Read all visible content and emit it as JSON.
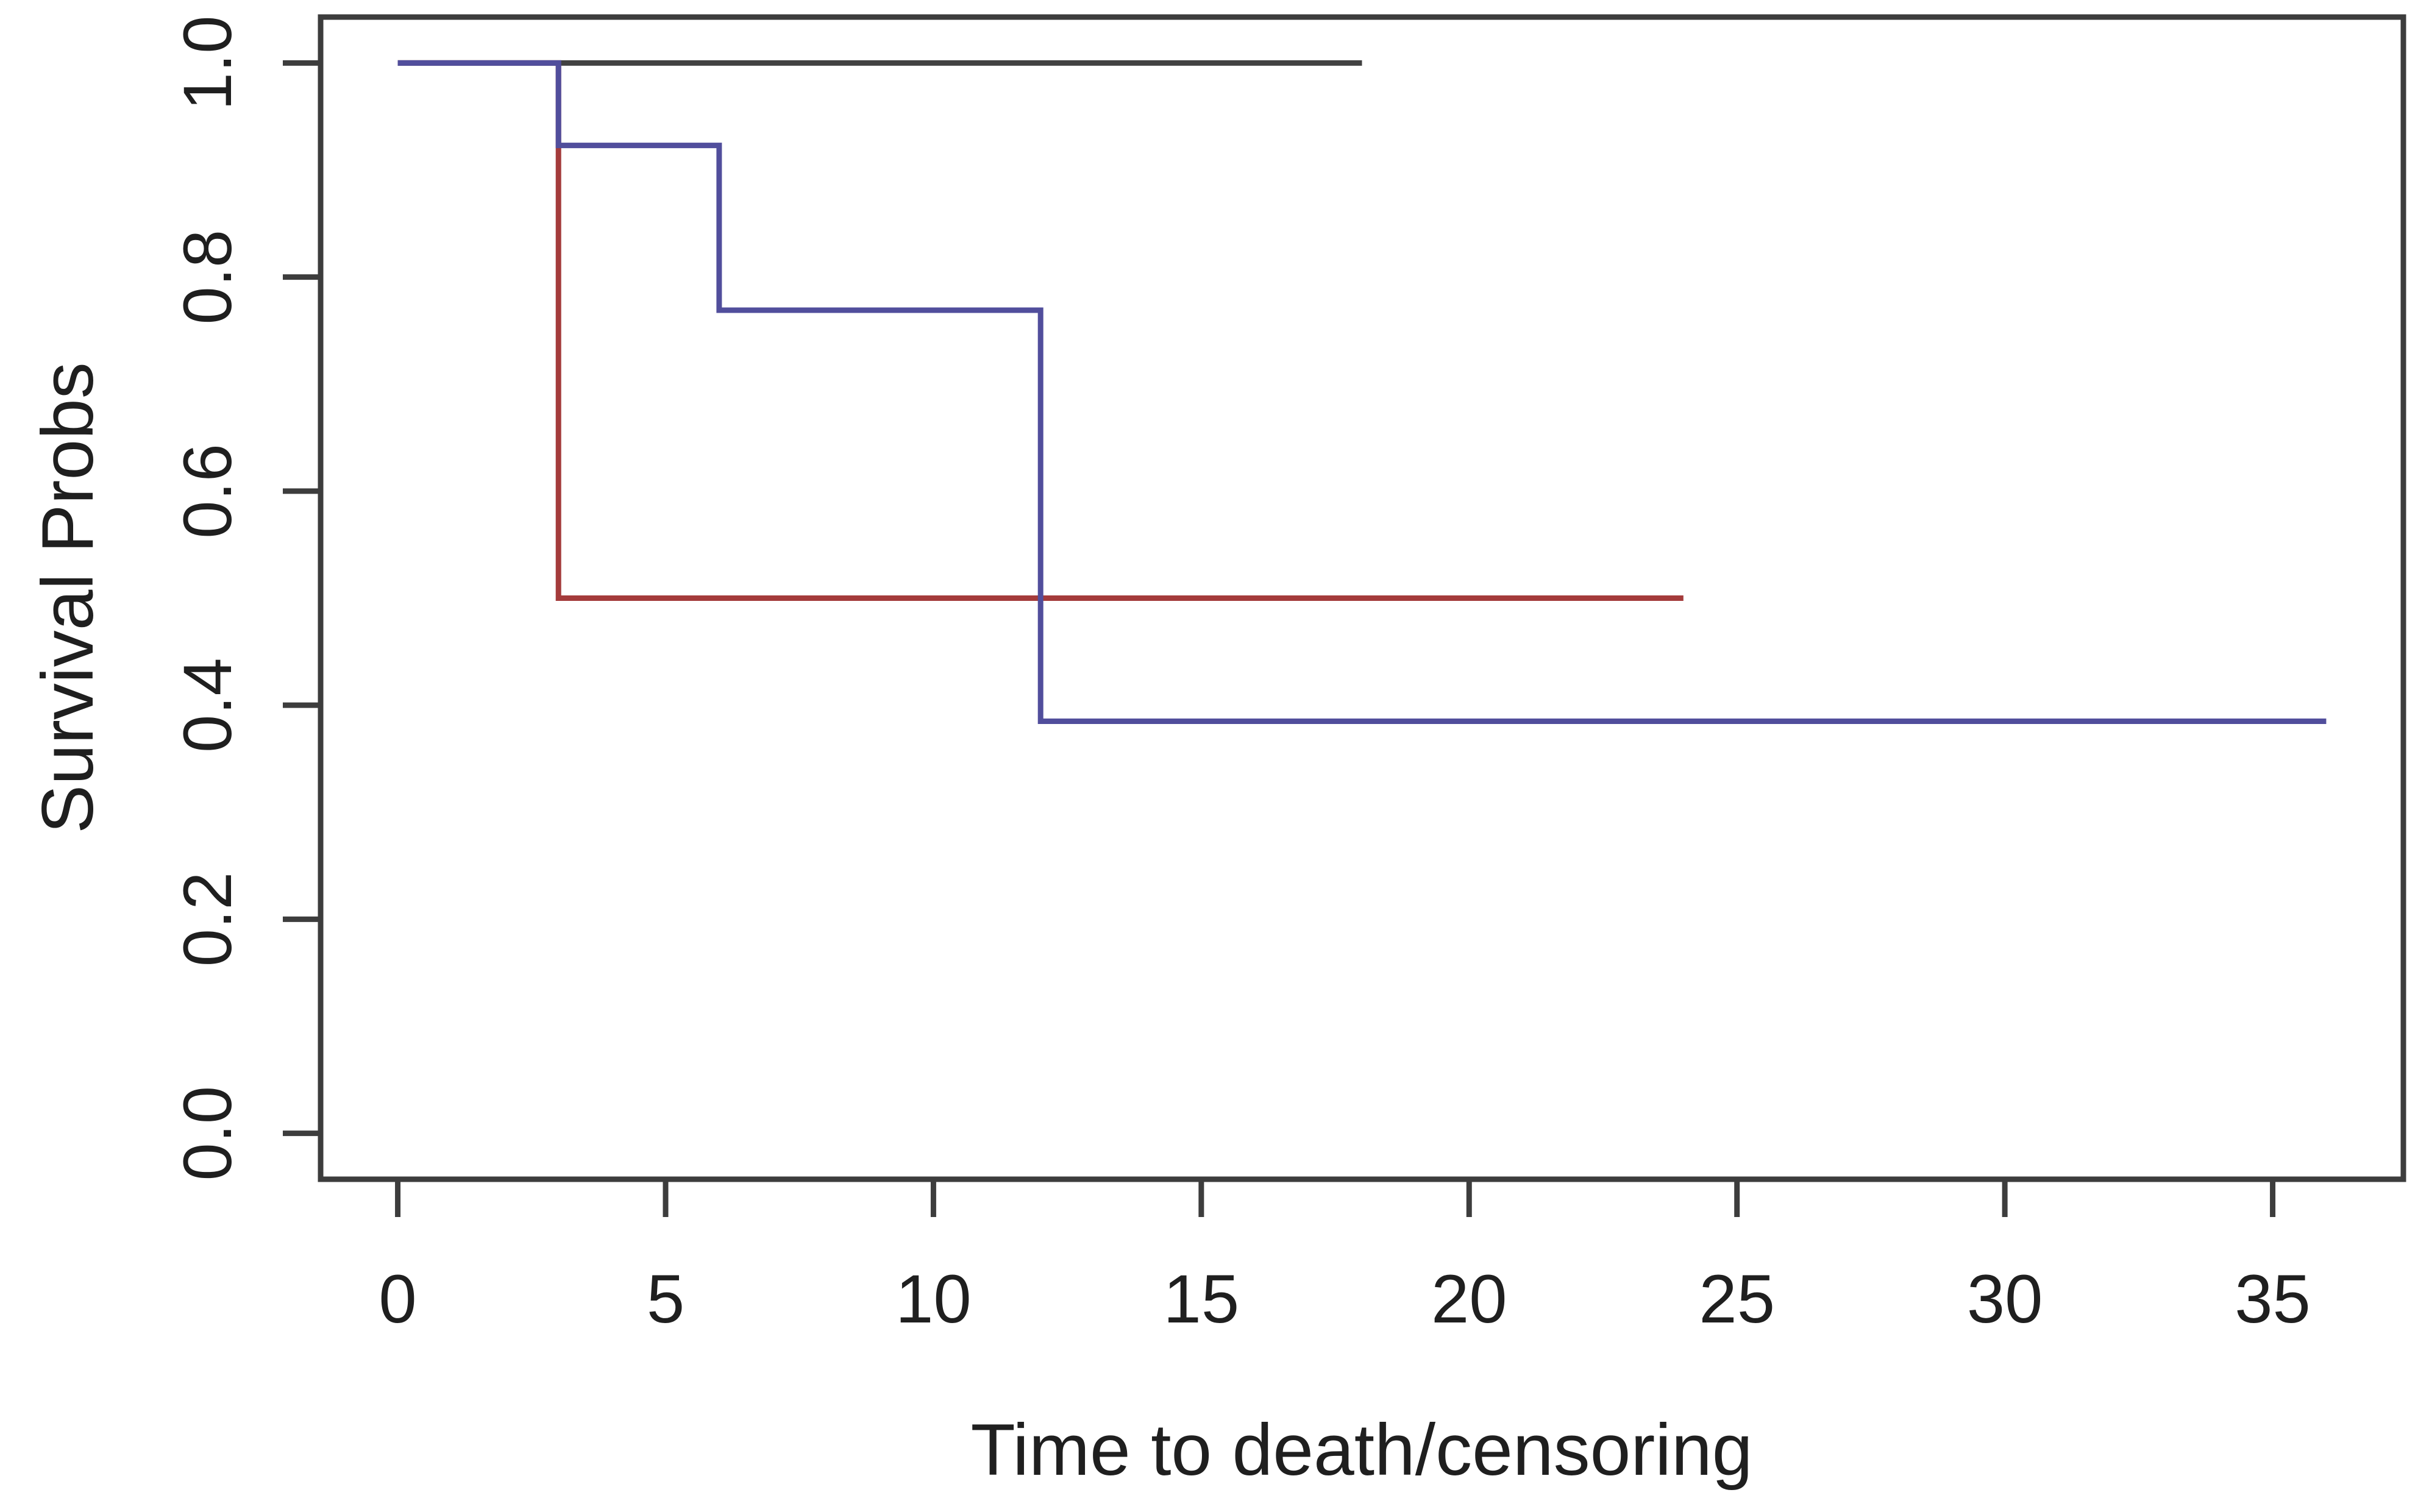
{
  "figure": {
    "background": "#ffffff"
  },
  "chart_data": {
    "type": "line",
    "subtype": "kaplan-meier-step",
    "title": "",
    "xlabel": "Time to death/censoring",
    "ylabel": "Survival Probs",
    "xlim": [
      -1.44,
      37.44
    ],
    "ylim": [
      -0.0429,
      1.0429
    ],
    "x_ticks": [
      0,
      5,
      10,
      15,
      20,
      25,
      30,
      35
    ],
    "x_tick_labels": [
      "0",
      "5",
      "10",
      "15",
      "20",
      "25",
      "30",
      "35"
    ],
    "y_ticks": [
      0.0,
      0.2,
      0.4,
      0.6,
      0.8,
      1.0
    ],
    "y_tick_labels": [
      "0.0",
      "0.2",
      "0.4",
      "0.6",
      "0.8",
      "1.0"
    ],
    "grid": false,
    "legend": "none",
    "series": [
      {
        "name": "group-red",
        "color": "#A43B3B",
        "points": [
          [
            0,
            1.0
          ],
          [
            3,
            1.0
          ],
          [
            3,
            0.5
          ],
          [
            24,
            0.5
          ]
        ]
      },
      {
        "name": "group-black",
        "color": "#424242",
        "points": [
          [
            0,
            1.0
          ],
          [
            18,
            1.0
          ]
        ]
      },
      {
        "name": "group-blue",
        "color": "#514E9C",
        "points": [
          [
            0,
            1.0
          ],
          [
            3,
            1.0
          ],
          [
            3,
            0.923
          ],
          [
            6,
            0.923
          ],
          [
            6,
            0.769
          ],
          [
            12,
            0.769
          ],
          [
            12,
            0.385
          ],
          [
            36,
            0.385
          ]
        ]
      }
    ],
    "colors": {
      "axis": "#3D3D3D",
      "text": "#1F1F1F"
    }
  }
}
